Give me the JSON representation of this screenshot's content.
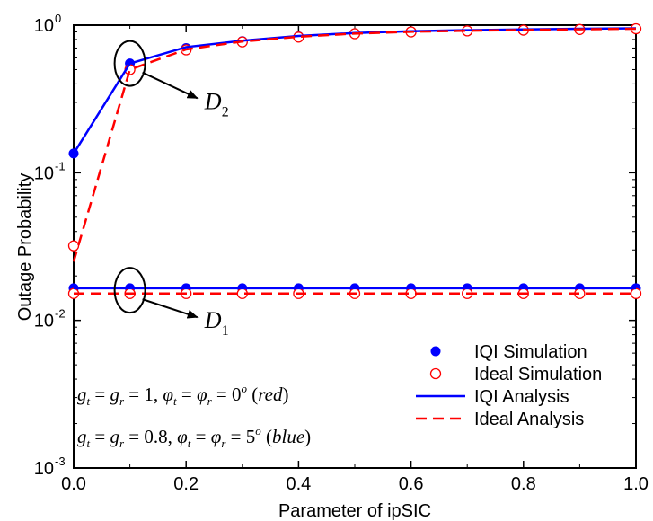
{
  "chart_data": {
    "type": "line",
    "title": "",
    "xlabel": "Parameter of ipSIC",
    "ylabel": "Outage Probability",
    "xlim": [
      0,
      1
    ],
    "ylim": [
      0.001,
      1
    ],
    "yscale": "log",
    "grid": false,
    "x_ticks": [
      0.0,
      0.2,
      0.4,
      0.6,
      0.8,
      1.0
    ],
    "x_tick_labels": [
      "0.0",
      "0.2",
      "0.4",
      "0.6",
      "0.8",
      "1.0"
    ],
    "y_ticks": [
      0.001,
      0.01,
      0.1,
      1
    ],
    "y_tick_labels": [
      {
        "base": "10",
        "exp": "-3"
      },
      {
        "base": "10",
        "exp": "-2"
      },
      {
        "base": "10",
        "exp": "-1"
      },
      {
        "base": "10",
        "exp": "0"
      }
    ],
    "x": [
      0.0,
      0.1,
      0.2,
      0.3,
      0.4,
      0.5,
      0.6,
      0.7,
      0.8,
      0.9,
      1.0
    ],
    "series": [
      {
        "name": "IQI Simulation",
        "style": "filled-marker",
        "color": "#0000ff",
        "groups": [
          [
            0.135,
            0.55,
            0.7,
            0.78,
            0.84,
            0.88,
            0.905,
            0.92,
            0.93,
            0.94,
            0.95
          ],
          [
            0.0165,
            0.0165,
            0.0165,
            0.0165,
            0.0165,
            0.0165,
            0.0165,
            0.0165,
            0.0165,
            0.0165,
            0.0165
          ]
        ]
      },
      {
        "name": "Ideal Simulation",
        "style": "open-marker",
        "color": "#ff0000",
        "groups": [
          [
            0.032,
            0.5,
            0.68,
            0.77,
            0.83,
            0.875,
            0.9,
            0.915,
            0.925,
            0.935,
            0.945
          ],
          [
            0.0152,
            0.0152,
            0.0152,
            0.0152,
            0.0152,
            0.0152,
            0.0152,
            0.0152,
            0.0152,
            0.0152,
            0.0152
          ]
        ]
      },
      {
        "name": "IQI Analysis",
        "style": "solid",
        "color": "#0000ff",
        "groups": [
          [
            0.135,
            0.55,
            0.71,
            0.785,
            0.845,
            0.885,
            0.91,
            0.925,
            0.935,
            0.945,
            0.952
          ],
          [
            0.0165,
            0.0165,
            0.0165,
            0.0165,
            0.0165,
            0.0165,
            0.0165,
            0.0165,
            0.0165,
            0.0165,
            0.0165
          ]
        ]
      },
      {
        "name": "Ideal Analysis",
        "style": "dashed",
        "color": "#ff0000",
        "groups": [
          [
            0.025,
            0.5,
            0.685,
            0.775,
            0.835,
            0.877,
            0.902,
            0.917,
            0.928,
            0.938,
            0.946
          ],
          [
            0.0152,
            0.0152,
            0.0152,
            0.0152,
            0.0152,
            0.0152,
            0.0152,
            0.0152,
            0.0152,
            0.0152,
            0.0152
          ]
        ]
      }
    ],
    "legend": {
      "position": "bottom-right",
      "entries": [
        "IQI Simulation",
        "Ideal Simulation",
        "IQI Analysis",
        "Ideal Analysis"
      ]
    },
    "annotations": [
      {
        "id": "D2",
        "main": "D",
        "sub": "2",
        "ellipse_at": {
          "x": 0.1,
          "y": 0.55
        },
        "arrow_to": {
          "x": 0.22,
          "y": 0.32
        }
      },
      {
        "id": "D1",
        "main": "D",
        "sub": "1",
        "ellipse_at": {
          "x": 0.1,
          "y": 0.016
        },
        "arrow_to": {
          "x": 0.22,
          "y": 0.0105
        }
      }
    ],
    "parameter_text": {
      "red": "g_t = g_r = 1, φ_t = φ_r = 0^o (red)",
      "blue": "g_t = g_r = 0.8, φ_t = φ_r = 5^o (blue)"
    }
  }
}
